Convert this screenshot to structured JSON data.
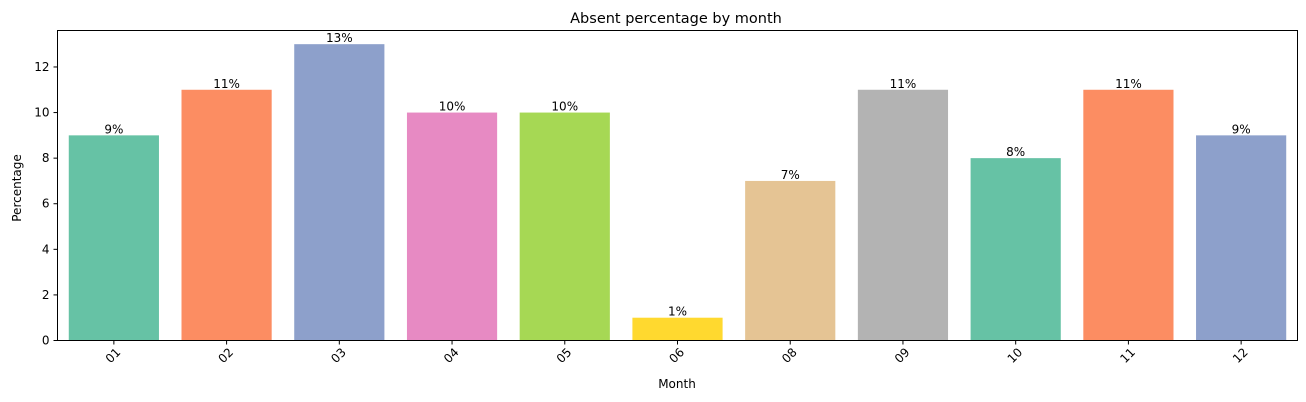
{
  "chart_data": {
    "type": "bar",
    "title": "Absent percentage by month",
    "xlabel": "Month",
    "ylabel": "Percentage",
    "categories": [
      "01",
      "02",
      "03",
      "04",
      "05",
      "06",
      "08",
      "09",
      "10",
      "11",
      "12"
    ],
    "values": [
      9,
      11,
      13,
      10,
      10,
      1,
      7,
      11,
      8,
      11,
      9
    ],
    "data_labels": [
      "9%",
      "11%",
      "13%",
      "10%",
      "10%",
      "1%",
      "7%",
      "11%",
      "8%",
      "11%",
      "9%"
    ],
    "colors": [
      "#66c2a5",
      "#fc8d62",
      "#8da0cb",
      "#e78ac3",
      "#a6d854",
      "#ffd92f",
      "#e5c494",
      "#b3b3b3",
      "#66c2a5",
      "#fc8d62",
      "#8da0cb"
    ],
    "ylim": [
      0,
      13.6
    ],
    "yticks": [
      0,
      2,
      4,
      6,
      8,
      10,
      12
    ],
    "grid": false,
    "x_tick_rotation": "45 degrees"
  }
}
